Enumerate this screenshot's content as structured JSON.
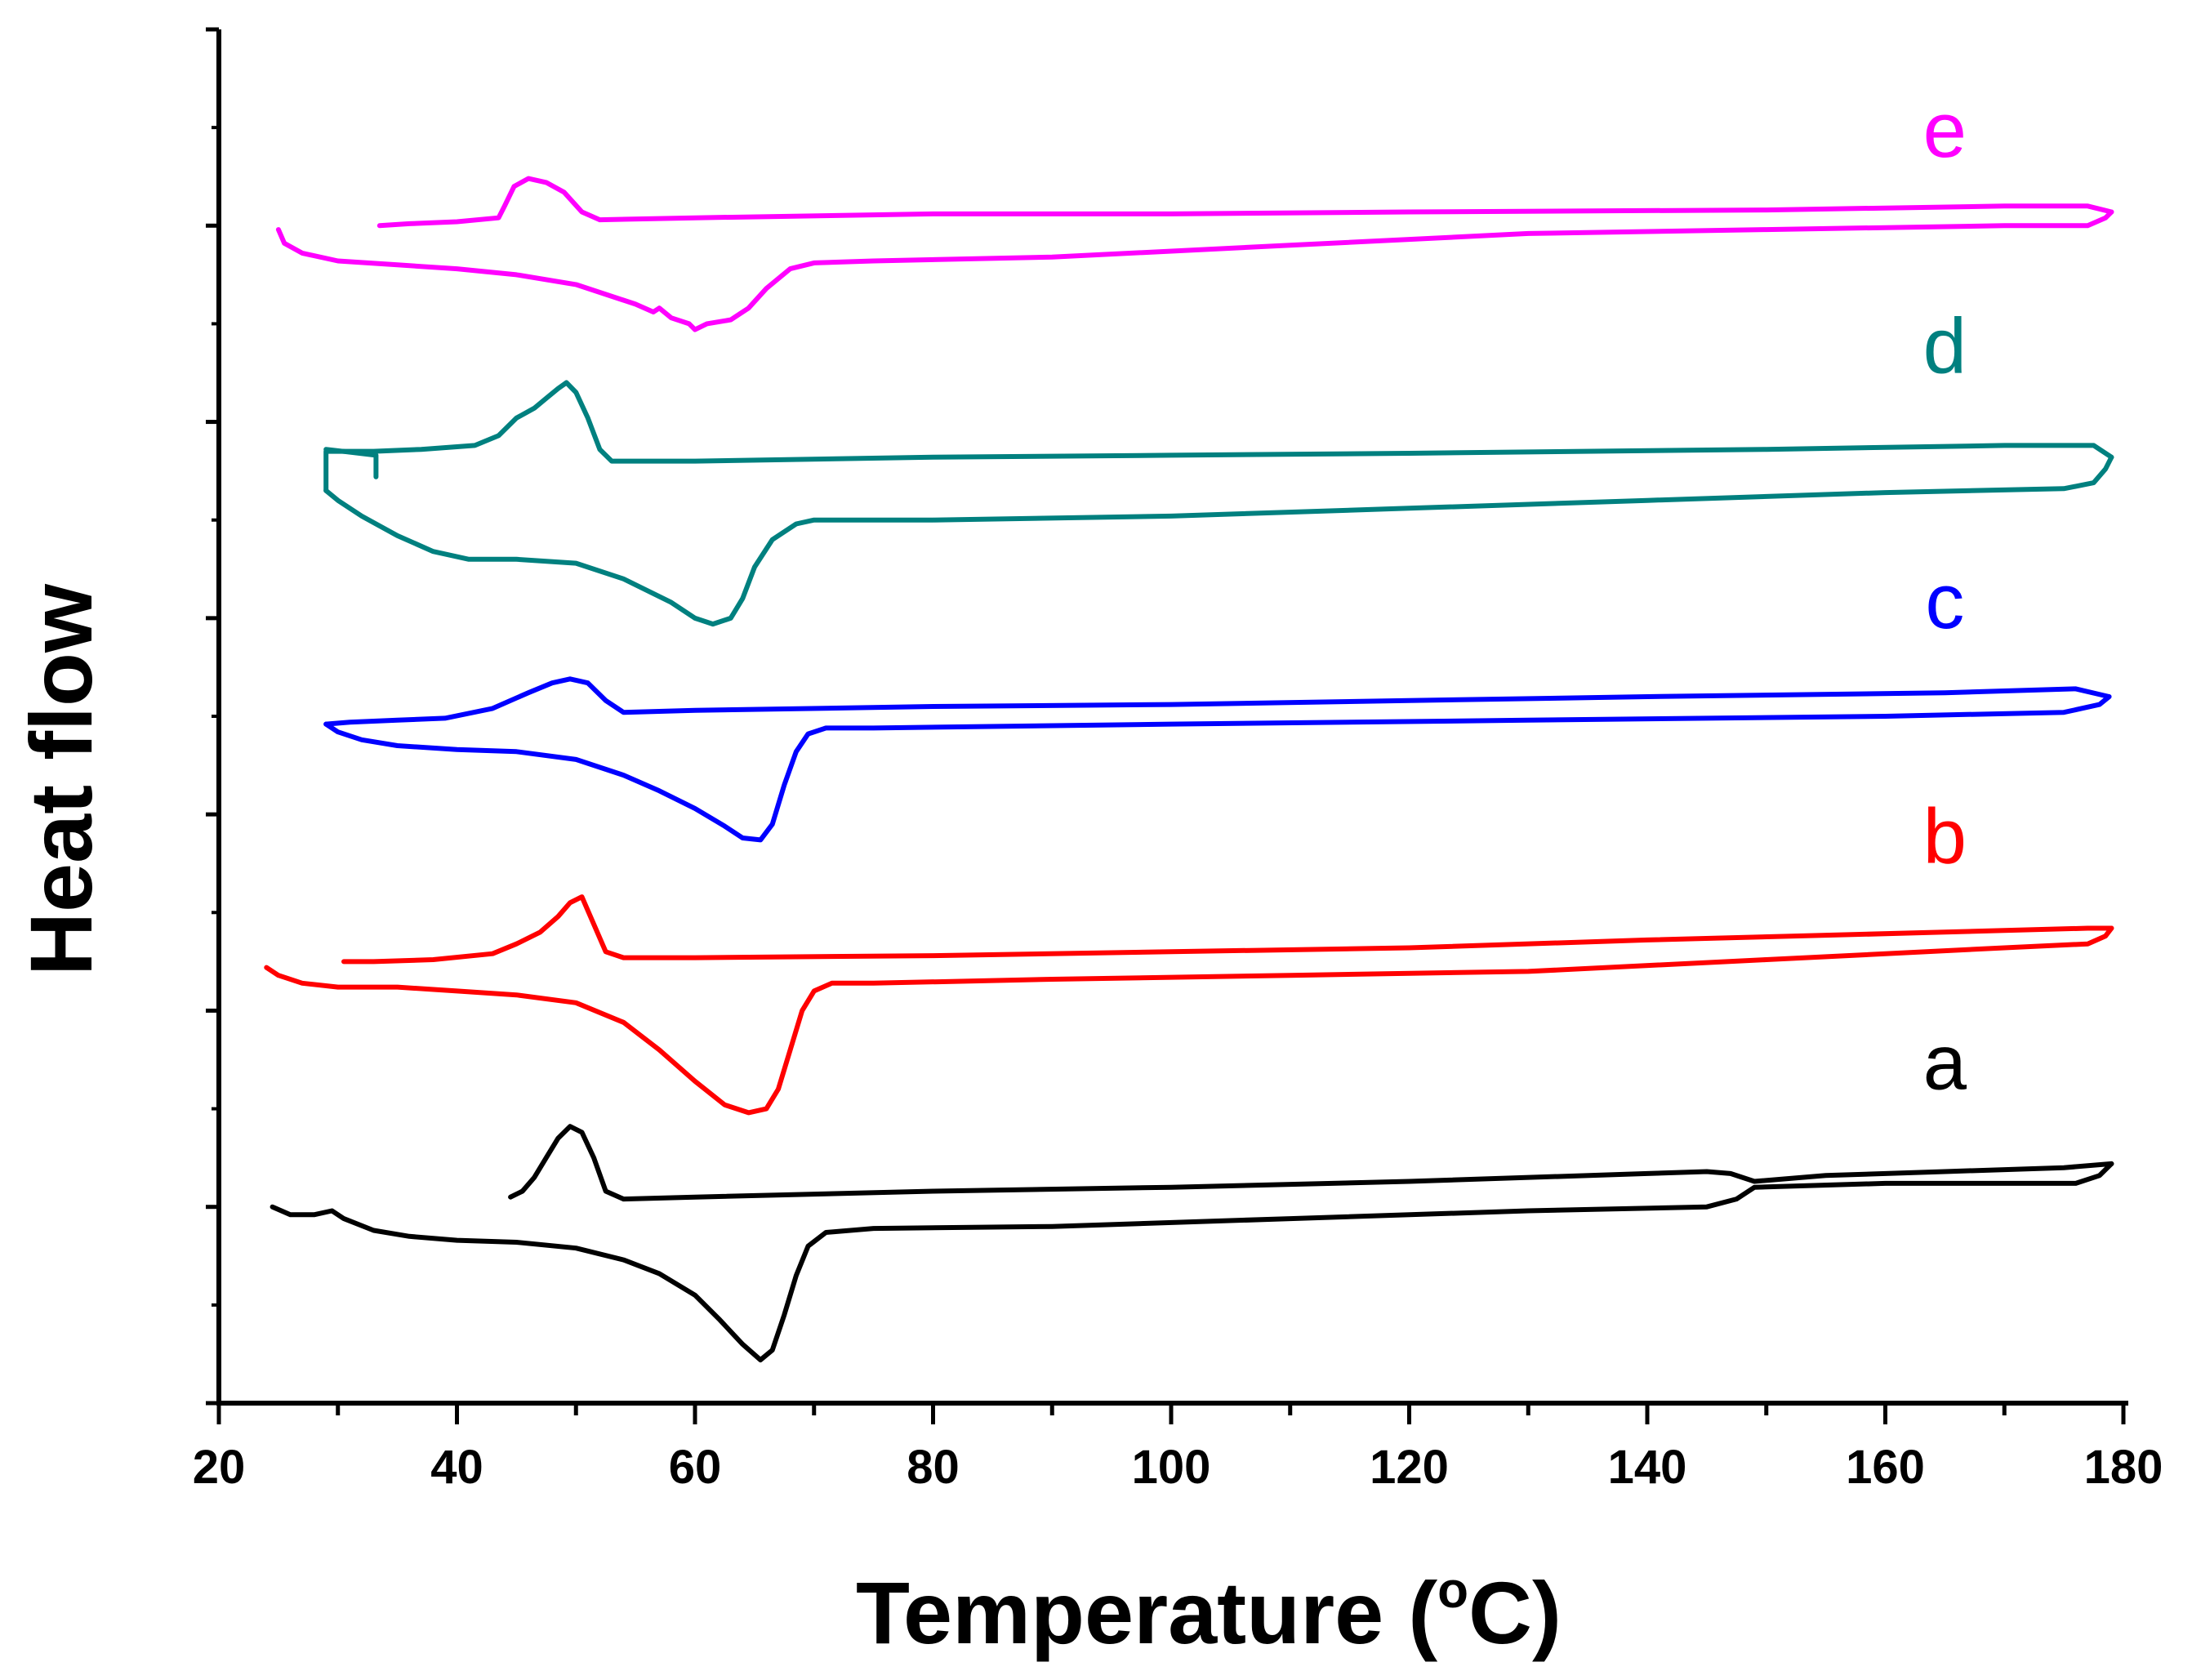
{
  "chart_data": {
    "type": "line",
    "title": "",
    "xlabel": "Temperature (",
    "xlabel_sup": "o",
    "xlabel_end": "C)",
    "ylabel": "Heat flow",
    "xlim": [
      20,
      180
    ],
    "ylim": [
      0,
      7
    ],
    "x_ticks": [
      20,
      40,
      60,
      80,
      100,
      120,
      140,
      160,
      180
    ],
    "x_tick_labels": [
      "20",
      "40",
      "60",
      "80",
      "100",
      "120",
      "140",
      "160",
      "180"
    ],
    "x_minor_step": 10,
    "y_ticks": [
      0,
      1,
      2,
      3,
      4,
      5,
      6,
      7
    ],
    "grid": false,
    "series": [
      {
        "name": "a",
        "color": "#000000",
        "label_at": [
          165,
          1.6
        ],
        "heating": [
          [
            24.5,
            1.0
          ],
          [
            26,
            0.96
          ],
          [
            28,
            0.96
          ],
          [
            29.5,
            0.98
          ],
          [
            30.5,
            0.94
          ],
          [
            33,
            0.88
          ],
          [
            36,
            0.85
          ],
          [
            40,
            0.83
          ],
          [
            45,
            0.82
          ],
          [
            50,
            0.79
          ],
          [
            54,
            0.73
          ],
          [
            57,
            0.66
          ],
          [
            60,
            0.55
          ],
          [
            62,
            0.43
          ],
          [
            64,
            0.3
          ],
          [
            65.5,
            0.22
          ],
          [
            66.5,
            0.27
          ],
          [
            67.5,
            0.45
          ],
          [
            68.5,
            0.65
          ],
          [
            69.5,
            0.8
          ],
          [
            71,
            0.87
          ],
          [
            75,
            0.89
          ],
          [
            90,
            0.9
          ],
          [
            110,
            0.94
          ],
          [
            130,
            0.98
          ],
          [
            145,
            1.0
          ],
          [
            147.5,
            1.04
          ],
          [
            149,
            1.1
          ],
          [
            160,
            1.12
          ],
          [
            170,
            1.12
          ],
          [
            176,
            1.12
          ],
          [
            178,
            1.16
          ],
          [
            179,
            1.22
          ]
        ],
        "cooling": [
          [
            179,
            1.22
          ],
          [
            175,
            1.2
          ],
          [
            165,
            1.18
          ],
          [
            155,
            1.16
          ],
          [
            149,
            1.13
          ],
          [
            147,
            1.17
          ],
          [
            145,
            1.18
          ],
          [
            140,
            1.17
          ],
          [
            120,
            1.13
          ],
          [
            100,
            1.1
          ],
          [
            80,
            1.08
          ],
          [
            60,
            1.05
          ],
          [
            54,
            1.04
          ],
          [
            52.5,
            1.08
          ],
          [
            51.5,
            1.25
          ],
          [
            50.5,
            1.38
          ],
          [
            49.5,
            1.41
          ],
          [
            48.5,
            1.35
          ],
          [
            47.5,
            1.25
          ],
          [
            46.5,
            1.15
          ],
          [
            45.5,
            1.08
          ],
          [
            44.5,
            1.05
          ]
        ]
      },
      {
        "name": "b",
        "color": "#ff0000",
        "label_at": [
          165,
          2.75
        ],
        "heating": [
          [
            24,
            2.22
          ],
          [
            25,
            2.18
          ],
          [
            27,
            2.14
          ],
          [
            30,
            2.12
          ],
          [
            35,
            2.12
          ],
          [
            40,
            2.1
          ],
          [
            45,
            2.08
          ],
          [
            50,
            2.04
          ],
          [
            54,
            1.94
          ],
          [
            57,
            1.8
          ],
          [
            60,
            1.64
          ],
          [
            62.5,
            1.52
          ],
          [
            64.5,
            1.48
          ],
          [
            66,
            1.5
          ],
          [
            67,
            1.6
          ],
          [
            68,
            1.8
          ],
          [
            69,
            2.0
          ],
          [
            70,
            2.1
          ],
          [
            71.5,
            2.14
          ],
          [
            75,
            2.14
          ],
          [
            90,
            2.16
          ],
          [
            110,
            2.18
          ],
          [
            130,
            2.2
          ],
          [
            150,
            2.26
          ],
          [
            170,
            2.32
          ],
          [
            177,
            2.34
          ],
          [
            178.5,
            2.38
          ],
          [
            179,
            2.42
          ]
        ],
        "cooling": [
          [
            179,
            2.42
          ],
          [
            177,
            2.42
          ],
          [
            165,
            2.4
          ],
          [
            140,
            2.36
          ],
          [
            120,
            2.32
          ],
          [
            100,
            2.3
          ],
          [
            80,
            2.28
          ],
          [
            60,
            2.27
          ],
          [
            54,
            2.27
          ],
          [
            52.5,
            2.3
          ],
          [
            51.5,
            2.44
          ],
          [
            50.5,
            2.58
          ],
          [
            49.5,
            2.55
          ],
          [
            48.5,
            2.48
          ],
          [
            47,
            2.4
          ],
          [
            45,
            2.34
          ],
          [
            43,
            2.29
          ],
          [
            38,
            2.26
          ],
          [
            33,
            2.25
          ],
          [
            30.5,
            2.25
          ]
        ]
      },
      {
        "name": "c",
        "color": "#0000ff",
        "label_at": [
          165,
          3.95
        ],
        "heating": [
          [
            29,
            3.46
          ],
          [
            30,
            3.42
          ],
          [
            32,
            3.38
          ],
          [
            35,
            3.35
          ],
          [
            40,
            3.33
          ],
          [
            45,
            3.32
          ],
          [
            50,
            3.28
          ],
          [
            54,
            3.2
          ],
          [
            57,
            3.12
          ],
          [
            60,
            3.03
          ],
          [
            62.5,
            2.94
          ],
          [
            64,
            2.88
          ],
          [
            65.5,
            2.87
          ],
          [
            66.5,
            2.95
          ],
          [
            67.5,
            3.15
          ],
          [
            68.5,
            3.32
          ],
          [
            69.5,
            3.41
          ],
          [
            71,
            3.44
          ],
          [
            75,
            3.44
          ],
          [
            100,
            3.46
          ],
          [
            130,
            3.48
          ],
          [
            160,
            3.5
          ],
          [
            175,
            3.52
          ],
          [
            178,
            3.56
          ],
          [
            178.8,
            3.6
          ]
        ],
        "cooling": [
          [
            178.8,
            3.6
          ],
          [
            176,
            3.64
          ],
          [
            165,
            3.62
          ],
          [
            140,
            3.6
          ],
          [
            120,
            3.58
          ],
          [
            100,
            3.56
          ],
          [
            80,
            3.55
          ],
          [
            60,
            3.53
          ],
          [
            54,
            3.52
          ],
          [
            52.5,
            3.58
          ],
          [
            51,
            3.67
          ],
          [
            49.5,
            3.69
          ],
          [
            48,
            3.67
          ],
          [
            46,
            3.62
          ],
          [
            43,
            3.54
          ],
          [
            39,
            3.49
          ],
          [
            35,
            3.48
          ],
          [
            31,
            3.47
          ],
          [
            29,
            3.46
          ]
        ]
      },
      {
        "name": "d",
        "color": "#00807f",
        "label_at": [
          165,
          5.25
        ],
        "heating": [
          [
            29,
            4.65
          ],
          [
            30,
            4.6
          ],
          [
            32,
            4.52
          ],
          [
            35,
            4.42
          ],
          [
            38,
            4.34
          ],
          [
            41,
            4.3
          ],
          [
            45,
            4.3
          ],
          [
            50,
            4.28
          ],
          [
            54,
            4.2
          ],
          [
            58,
            4.08
          ],
          [
            60,
            4.0
          ],
          [
            61.5,
            3.97
          ],
          [
            63,
            4.0
          ],
          [
            64,
            4.1
          ],
          [
            65,
            4.26
          ],
          [
            66.5,
            4.4
          ],
          [
            68.5,
            4.48
          ],
          [
            70,
            4.5
          ],
          [
            80,
            4.5
          ],
          [
            100,
            4.52
          ],
          [
            120,
            4.56
          ],
          [
            140,
            4.6
          ],
          [
            160,
            4.64
          ],
          [
            175,
            4.66
          ],
          [
            177.5,
            4.69
          ],
          [
            178.5,
            4.76
          ],
          [
            179,
            4.82
          ]
        ],
        "cooling": [
          [
            179,
            4.82
          ],
          [
            177.5,
            4.88
          ],
          [
            170,
            4.88
          ],
          [
            150,
            4.86
          ],
          [
            120,
            4.84
          ],
          [
            100,
            4.83
          ],
          [
            80,
            4.82
          ],
          [
            60,
            4.8
          ],
          [
            53,
            4.8
          ],
          [
            52,
            4.86
          ],
          [
            51,
            5.02
          ],
          [
            50,
            5.15
          ],
          [
            49.2,
            5.2
          ],
          [
            48.5,
            5.17
          ],
          [
            47.5,
            5.12
          ],
          [
            46.5,
            5.07
          ],
          [
            45,
            5.02
          ],
          [
            43.5,
            4.93
          ],
          [
            41.5,
            4.88
          ],
          [
            37,
            4.86
          ],
          [
            33,
            4.85
          ],
          [
            29,
            4.85
          ],
          [
            29,
            4.65
          ]
        ],
        "extra": [
          [
            29,
            4.86
          ],
          [
            33.2,
            4.83
          ],
          [
            33.2,
            4.72
          ]
        ]
      },
      {
        "name": "e",
        "color": "#ff00ff",
        "label_at": [
          165,
          6.35
        ],
        "heating": [
          [
            25,
            5.98
          ],
          [
            25.5,
            5.91
          ],
          [
            27,
            5.86
          ],
          [
            30,
            5.82
          ],
          [
            35,
            5.8
          ],
          [
            40,
            5.78
          ],
          [
            45,
            5.75
          ],
          [
            50,
            5.7
          ],
          [
            55,
            5.6
          ],
          [
            56.5,
            5.56
          ],
          [
            57,
            5.58
          ],
          [
            58,
            5.53
          ],
          [
            59.5,
            5.5
          ],
          [
            60,
            5.47
          ],
          [
            61,
            5.5
          ],
          [
            63,
            5.52
          ],
          [
            64.5,
            5.58
          ],
          [
            66,
            5.68
          ],
          [
            68,
            5.78
          ],
          [
            70,
            5.81
          ],
          [
            75,
            5.82
          ],
          [
            90,
            5.84
          ],
          [
            110,
            5.9
          ],
          [
            130,
            5.96
          ],
          [
            150,
            5.98
          ],
          [
            170,
            6.0
          ],
          [
            177,
            6.0
          ],
          [
            178.5,
            6.04
          ],
          [
            179,
            6.07
          ]
        ],
        "cooling": [
          [
            179,
            6.07
          ],
          [
            177,
            6.1
          ],
          [
            170,
            6.1
          ],
          [
            150,
            6.08
          ],
          [
            120,
            6.07
          ],
          [
            100,
            6.06
          ],
          [
            80,
            6.06
          ],
          [
            60,
            6.04
          ],
          [
            52,
            6.03
          ],
          [
            50.5,
            6.07
          ],
          [
            49,
            6.17
          ],
          [
            47.5,
            6.22
          ],
          [
            46,
            6.24
          ],
          [
            44.8,
            6.2
          ],
          [
            44,
            6.1
          ],
          [
            43.5,
            6.04
          ],
          [
            40,
            6.02
          ],
          [
            36,
            6.01
          ],
          [
            33.5,
            6.0
          ]
        ]
      }
    ]
  }
}
